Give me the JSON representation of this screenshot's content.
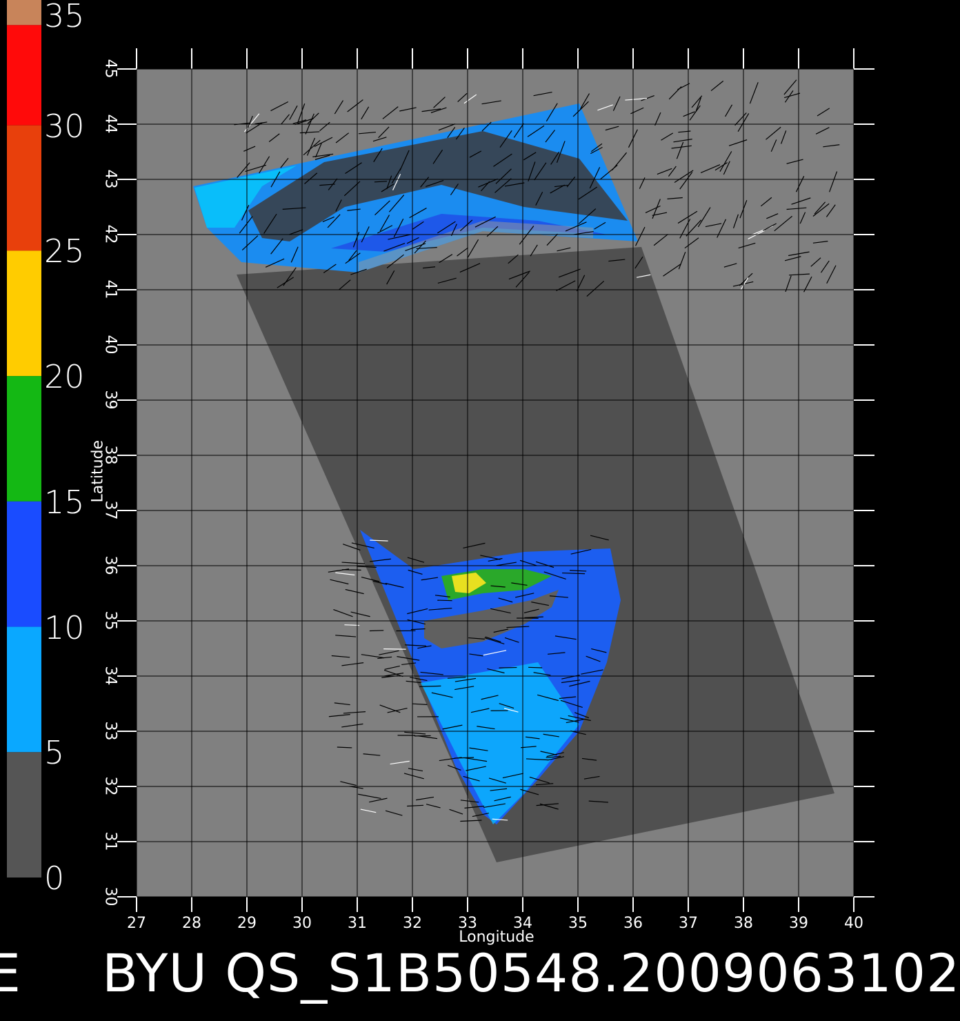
{
  "colorbar": {
    "labels": [
      "35",
      "30",
      "25",
      "20",
      "15",
      "10",
      "5",
      "0"
    ],
    "stops": [
      {
        "from": 35,
        "to": 34,
        "color": "#c8845a"
      },
      {
        "from": 34,
        "to": 30,
        "color": "#ff0a0a"
      },
      {
        "from": 30,
        "to": 25,
        "color": "#e8400c"
      },
      {
        "from": 25,
        "to": 20,
        "color": "#ffcc00"
      },
      {
        "from": 20,
        "to": 15,
        "color": "#14b814"
      },
      {
        "from": 15,
        "to": 10,
        "color": "#1a4cff"
      },
      {
        "from": 10,
        "to": 5,
        "color": "#0aa8ff"
      },
      {
        "from": 5,
        "to": 0,
        "color": "#555555"
      }
    ]
  },
  "map": {
    "lon_ticks": [
      "27",
      "28",
      "29",
      "30",
      "31",
      "32",
      "33",
      "34",
      "35",
      "36",
      "37",
      "38",
      "39",
      "40"
    ],
    "lat_ticks": [
      "30",
      "31",
      "32",
      "33",
      "34",
      "35",
      "36",
      "37",
      "38",
      "39",
      "40",
      "41",
      "42",
      "43",
      "44",
      "45"
    ],
    "lon_range": [
      27,
      40
    ],
    "lat_range": [
      30,
      45
    ],
    "xlabel": "Longitude",
    "ylabel": "Latitude",
    "land_color": "#808080",
    "swath_color": "#505050",
    "background": "#000000"
  },
  "footer": {
    "left_fragment": "E",
    "title": "BYU QS_S1B50548.2009063102"
  }
}
